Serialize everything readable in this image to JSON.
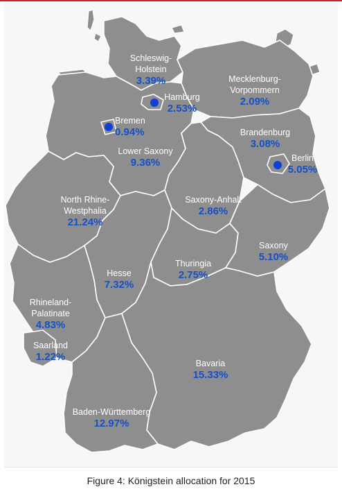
{
  "figure": {
    "caption": "Figure 4: Königstein allocation for 2015"
  },
  "colors": {
    "land": "#8e8e8e",
    "border": "#ffffff",
    "value_text": "#1450c8",
    "dot": "#1040d8"
  },
  "states": {
    "schleswig_holstein": {
      "name_1": "Schleswig-",
      "name_2": "Holstein",
      "share": "3.39%"
    },
    "hamburg": {
      "name": "Hamburg",
      "share": "2.53%"
    },
    "mecklenburg": {
      "name_1": "Mecklenburg-",
      "name_2": "Vorpommern",
      "share": "2.09%"
    },
    "bremen": {
      "name": "Bremen",
      "share": "0.94%"
    },
    "brandenburg": {
      "name": "Brandenburg",
      "share": "3.08%"
    },
    "berlin": {
      "name": "Berlin",
      "share": "5.05%"
    },
    "lower_saxony": {
      "name": "Lower Saxony",
      "share": "9.36%"
    },
    "nrw": {
      "name_1": "North Rhine-",
      "name_2": "Westphalia",
      "share": "21.24%"
    },
    "saxony_anhalt": {
      "name": "Saxony-Anhalt",
      "share": "2.86%"
    },
    "saxony": {
      "name": "Saxony",
      "share": "5.10%"
    },
    "hesse": {
      "name": "Hesse",
      "share": "7.32%"
    },
    "thuringia": {
      "name": "Thuringia",
      "share": "2.75%"
    },
    "rhineland_palatinate": {
      "name_1": "Rhineland-",
      "name_2": "Palatinate",
      "share": "4.83%"
    },
    "saarland": {
      "name": "Saarland",
      "share": "1.22%"
    },
    "bavaria": {
      "name": "Bavaria",
      "share": "15.33%"
    },
    "baden_wurttemberg": {
      "name": "Baden-Württemberg",
      "share": "12.97%"
    }
  }
}
